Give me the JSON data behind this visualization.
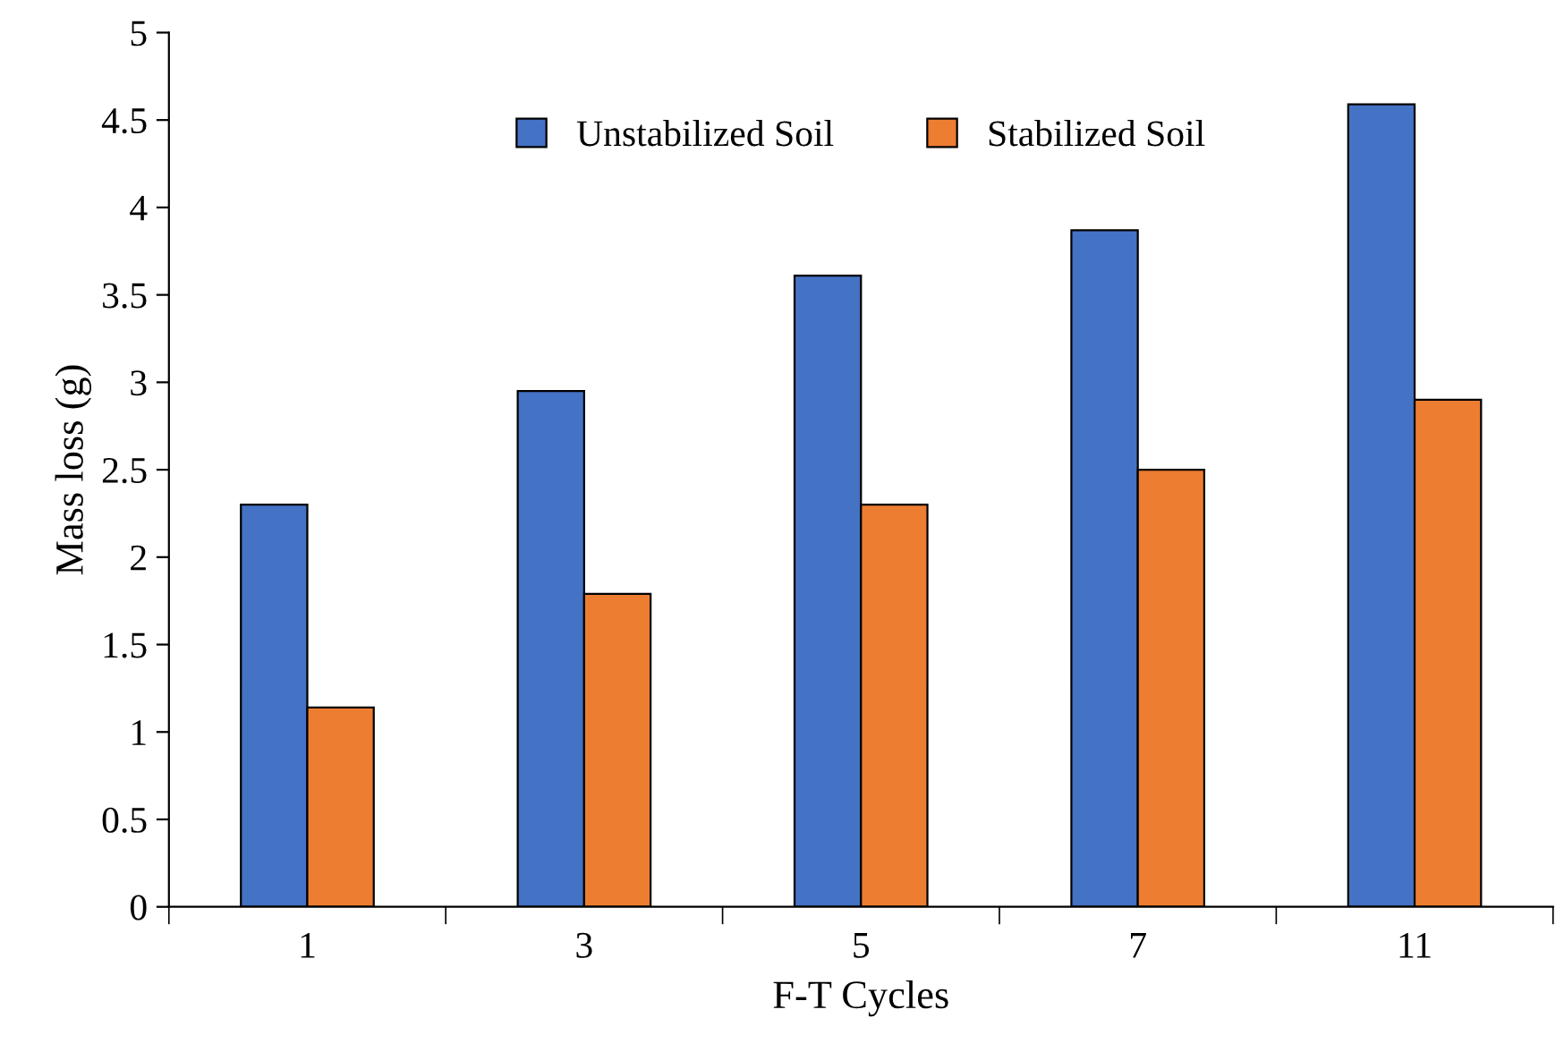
{
  "chart_data": {
    "type": "bar",
    "xlabel": "F-T Cycles",
    "ylabel": "Mass loss (g)",
    "categories": [
      "1",
      "3",
      "5",
      "7",
      "11"
    ],
    "series": [
      {
        "name": "Unstabilized Soil",
        "color": "#4472c4",
        "values": [
          2.3,
          2.95,
          3.61,
          3.87,
          4.59
        ]
      },
      {
        "name": "Stabilized Soil",
        "color": "#ed7d31",
        "values": [
          1.14,
          1.79,
          2.3,
          2.5,
          2.9
        ]
      }
    ],
    "ylim": [
      0,
      5
    ],
    "yticks": [
      0,
      0.5,
      1,
      1.5,
      2,
      2.5,
      3,
      3.5,
      4,
      4.5,
      5
    ],
    "grid": false,
    "legend": "top"
  }
}
